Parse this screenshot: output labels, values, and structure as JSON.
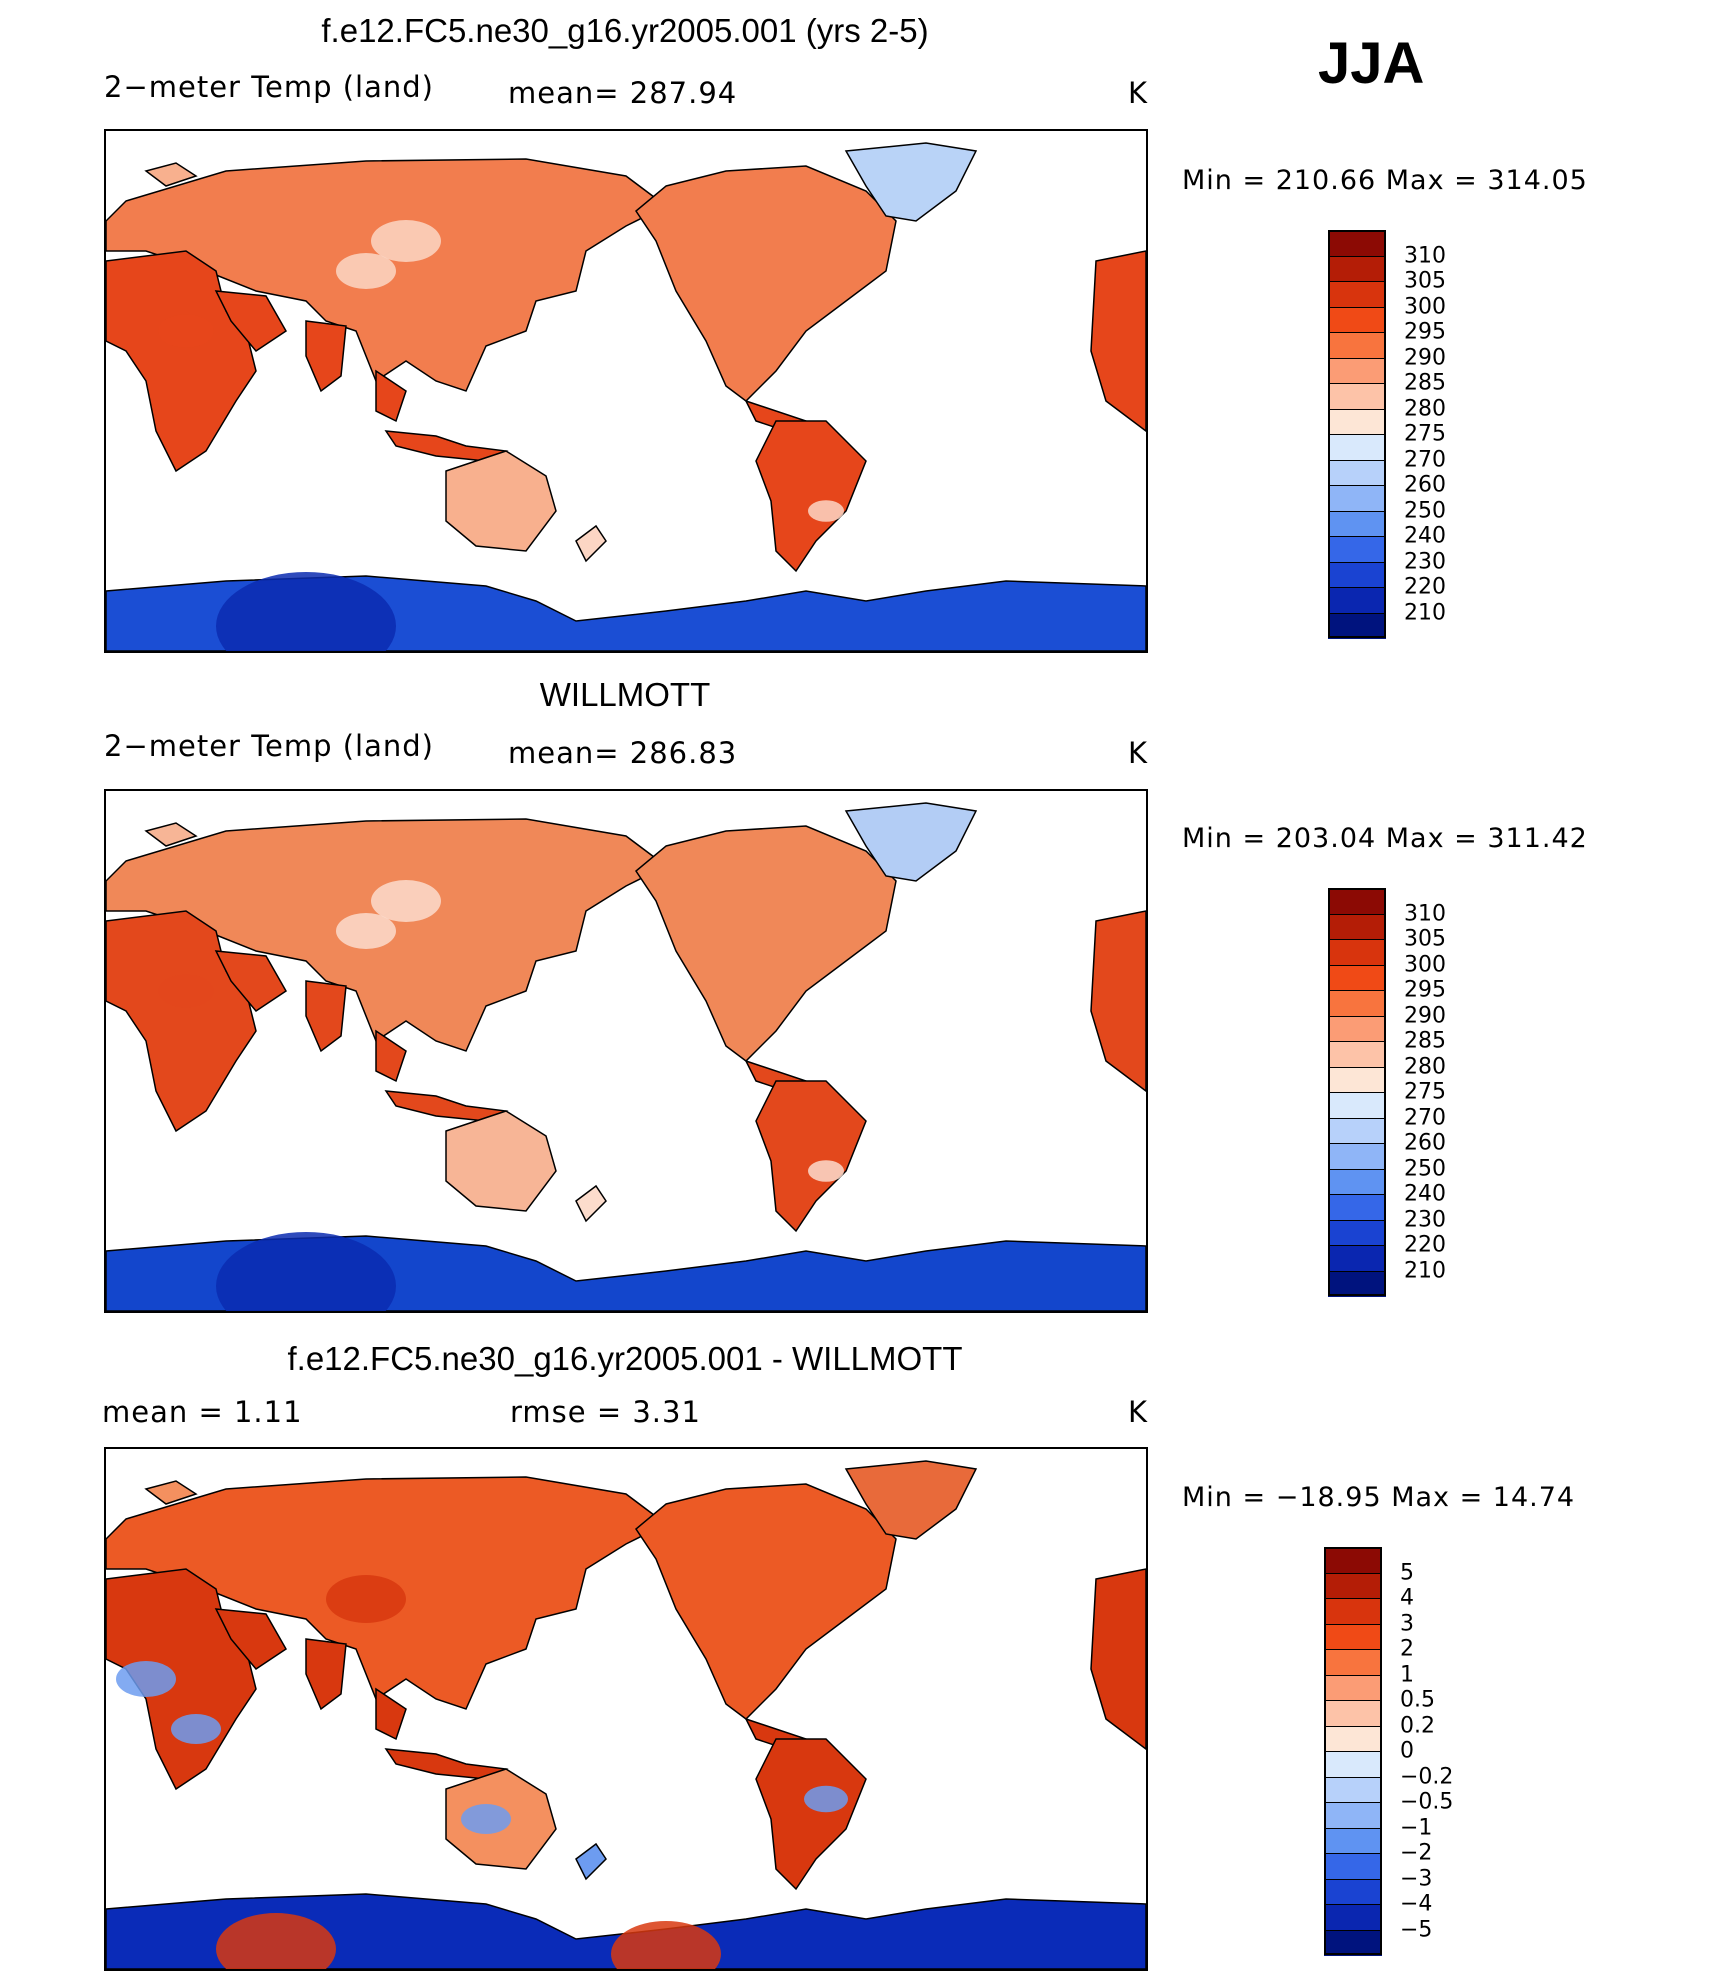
{
  "season": "JJA",
  "units": "K",
  "panels": [
    {
      "id": "model",
      "title": "f.e12.FC5.ne30_g16.yr2005.001 (yrs 2-5)",
      "variable": "2−meter Temp (land)",
      "stat": "mean= 287.94",
      "units": "K",
      "min_label": "Min",
      "min_value": "210.66",
      "max_label": "Max",
      "max_value": "314.05",
      "minmax_text": "Min  =  210.66  Max  =  314.05",
      "palette": "temp",
      "cbar": [
        "310",
        "305",
        "300",
        "295",
        "290",
        "285",
        "280",
        "275",
        "270",
        "260",
        "250",
        "240",
        "230",
        "220",
        "210"
      ],
      "cbar_colors": [
        "#8c0a04",
        "#b41d06",
        "#d8340d",
        "#f04a16",
        "#f8743e",
        "#fb9c75",
        "#fdc3a8",
        "#fde6d6",
        "#d9e9fc",
        "#b7d1fa",
        "#8fb5f7",
        "#5f93f2",
        "#3567e8",
        "#1a43d2",
        "#0a26b0",
        "#00137e"
      ],
      "map_fill": {
        "hot": "#e6461b",
        "warm": "#f27d4e",
        "mild": "#f8b08e",
        "cool": "#fcd6c4",
        "polar": "#1b4ed4",
        "greenland": "#b9d3f7"
      }
    },
    {
      "id": "obs",
      "title": "WILLMOTT",
      "variable": "2−meter Temp (land)",
      "stat": "mean= 286.83",
      "units": "K",
      "min_label": "Min",
      "min_value": "203.04",
      "max_label": "Max",
      "max_value": "311.42",
      "minmax_text": "Min  =  203.04  Max  =  311.42",
      "palette": "temp",
      "cbar": [
        "310",
        "305",
        "300",
        "295",
        "290",
        "285",
        "280",
        "275",
        "270",
        "260",
        "250",
        "240",
        "230",
        "220",
        "210"
      ],
      "cbar_colors": [
        "#8c0a04",
        "#b41d06",
        "#d8340d",
        "#f04a16",
        "#f8743e",
        "#fb9c75",
        "#fdc3a8",
        "#fde6d6",
        "#d9e9fc",
        "#b7d1fa",
        "#8fb5f7",
        "#5f93f2",
        "#3567e8",
        "#1a43d2",
        "#0a26b0",
        "#00137e"
      ],
      "map_fill": {
        "hot": "#e3481c",
        "warm": "#f08858",
        "mild": "#f7b596",
        "cool": "#fcdccc",
        "polar": "#1346cc",
        "greenland": "#b3cdf5"
      }
    },
    {
      "id": "diff",
      "title": "f.e12.FC5.ne30_g16.yr2005.001 - WILLMOTT",
      "variable": "mean =      1.11",
      "stat": "rmse =      3.31",
      "units": "K",
      "min_label": "Min",
      "min_value": "−18.95",
      "max_label": "Max",
      "max_value": "14.74",
      "minmax_text": "Min  =  −18.95  Max  =    14.74",
      "palette": "diff",
      "cbar": [
        "5",
        "4",
        "3",
        "2",
        "1",
        "0.5",
        "0.2",
        "0",
        "−0.2",
        "−0.5",
        "−1",
        "−2",
        "−3",
        "−4",
        "−5"
      ],
      "cbar_colors": [
        "#8c0a04",
        "#b41d06",
        "#d8340d",
        "#f04a16",
        "#f8743e",
        "#fb9c75",
        "#fdc3a8",
        "#fde6d6",
        "#d9e9fc",
        "#b7d1fa",
        "#8fb5f7",
        "#5f93f2",
        "#3567e8",
        "#1a43d2",
        "#0a26b0",
        "#00137e"
      ],
      "map_fill": {
        "hot": "#d8380f",
        "warm": "#ec5a25",
        "mild": "#f4905f",
        "cool": "#6d9cf0",
        "polar": "#0a2bb8",
        "greenland": "#e86a3a"
      }
    }
  ]
}
